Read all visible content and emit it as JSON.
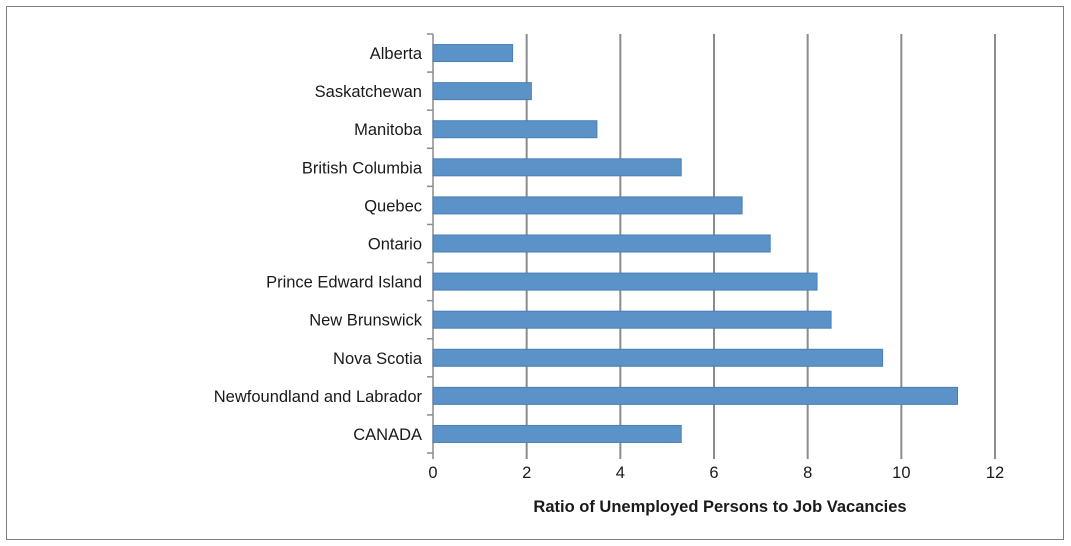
{
  "chart_data": {
    "type": "bar",
    "orientation": "horizontal",
    "categories": [
      "Alberta",
      "Saskatchewan",
      "Manitoba",
      "British Columbia",
      "Quebec",
      "Ontario",
      "Prince Edward Island",
      "New Brunswick",
      "Nova Scotia",
      "Newfoundland and Labrador",
      "CANADA"
    ],
    "values": [
      1.7,
      2.1,
      3.5,
      5.3,
      6.6,
      7.2,
      8.2,
      8.5,
      9.6,
      11.2,
      5.3
    ],
    "xlabel": "Ratio of Unemployed Persons to Job Vacancies",
    "xlim": [
      0,
      12
    ],
    "xticks": [
      "0",
      "2",
      "4",
      "6",
      "8",
      "10",
      "12"
    ],
    "grid": "vertical",
    "legend": "none",
    "colors": {
      "bar": "#5b93c9",
      "bar_edge": "#4a7fb3",
      "grid": "#8c8c8c"
    }
  }
}
